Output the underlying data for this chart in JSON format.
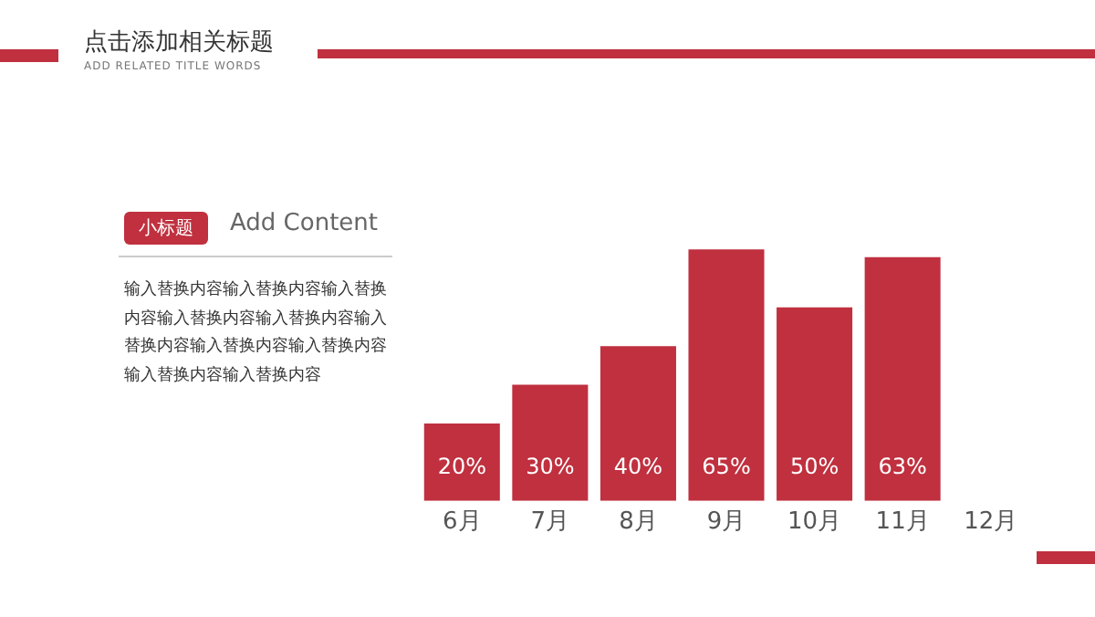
{
  "chart_data": {
    "type": "bar",
    "title": "点击添加相关标题",
    "subtitle": "ADD RELATED TITLE WORDS",
    "annotations": [
      "小标题",
      "Add Content",
      "输入替换内容输入替换内容输入替换内容输入替换内容输入替换内容输入替换内容输入替换内容输入替换内容输入替换内容输入替换内容"
    ],
    "categories": [
      "6月",
      "7月",
      "8月",
      "9月",
      "10月",
      "11月",
      "12月"
    ],
    "values": [
      20,
      30,
      40,
      65,
      50,
      63,
      null
    ],
    "value_labels": [
      "20%",
      "30%",
      "40%",
      "65%",
      "50%",
      "63%",
      null
    ],
    "color": "#c0303f",
    "legend": false
  }
}
